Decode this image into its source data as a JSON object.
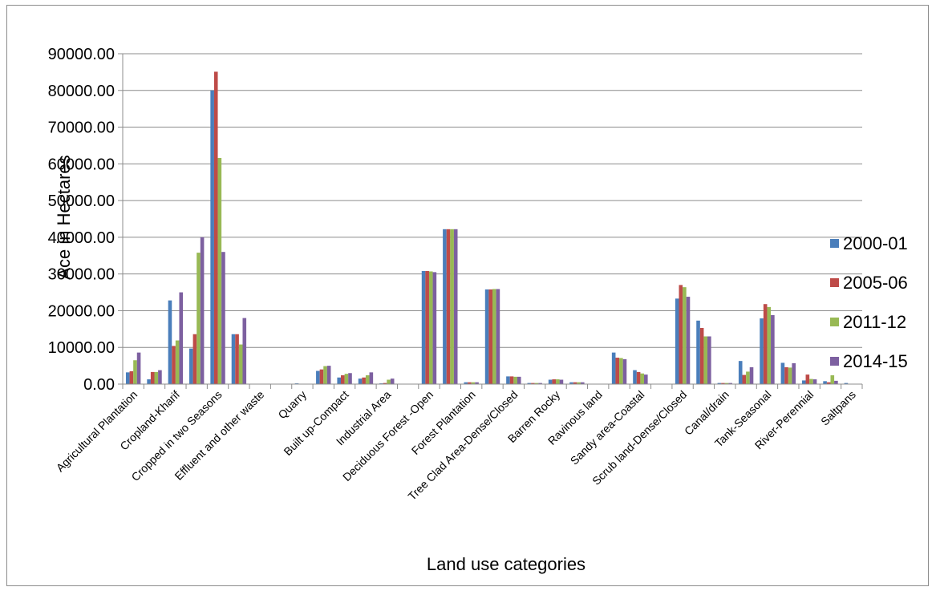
{
  "chart_data": {
    "type": "bar",
    "title": "",
    "xlabel": "Land use categories",
    "ylabel": "Ace in Hectares",
    "ylim": [
      0,
      90000
    ],
    "yticks": [
      "0.00",
      "10000.00",
      "20000.00",
      "30000.00",
      "40000.00",
      "50000.00",
      "60000.00",
      "70000.00",
      "80000.00",
      "90000.00"
    ],
    "grid": true,
    "legend_position": "right",
    "category_labels_shown": [
      "Agricultural Plantation",
      "Cropland-Kharif",
      "Cropped in two Seasons",
      "Effluent and other waste",
      "Quarry",
      "Built up-Compact",
      "Industrial Area",
      "Deciduous Forest -Open",
      "Forest Plantation",
      "Tree Clad Area-Dense/Closed",
      "Barren Rocky",
      "Ravinous land",
      "Sandy area-Coastal",
      "Scrub land-Dense/Closed",
      "Canal/drain",
      "Tank-Seasonal",
      "River-Perennial",
      "Saltpans"
    ],
    "label_every": 2,
    "categories": 35,
    "series": [
      {
        "name": "2000-01",
        "color": "#4a7ebb",
        "values": [
          3200,
          1300,
          22800,
          9700,
          80000,
          13600,
          0,
          0,
          200,
          3600,
          1800,
          1500,
          200,
          0,
          30800,
          42200,
          500,
          25800,
          2100,
          300,
          1200,
          500,
          0,
          8600,
          3800,
          0,
          23300,
          17300,
          300,
          6300,
          17900,
          5800,
          1000,
          800,
          300
        ]
      },
      {
        "name": "2005-06",
        "color": "#be4b48",
        "values": [
          3500,
          3300,
          10400,
          13600,
          85100,
          13600,
          0,
          0,
          0,
          4000,
          2400,
          1800,
          300,
          0,
          30800,
          42200,
          500,
          25800,
          2100,
          300,
          1300,
          500,
          0,
          7200,
          3300,
          0,
          27000,
          15300,
          300,
          2500,
          21800,
          4600,
          2600,
          500,
          0
        ]
      },
      {
        "name": "2011-12",
        "color": "#98b954",
        "values": [
          6500,
          3300,
          11900,
          35800,
          61600,
          10800,
          0,
          0,
          0,
          4900,
          2800,
          2400,
          1200,
          0,
          30700,
          42200,
          500,
          25900,
          2000,
          300,
          1300,
          500,
          0,
          7100,
          2900,
          0,
          26400,
          13000,
          300,
          3400,
          21000,
          4500,
          1400,
          2400,
          0
        ]
      },
      {
        "name": "2014-15",
        "color": "#7d60a0",
        "values": [
          8600,
          3800,
          25000,
          40000,
          36000,
          18000,
          0,
          0,
          0,
          5000,
          3000,
          3200,
          1500,
          0,
          30500,
          42200,
          500,
          25900,
          2000,
          300,
          1200,
          500,
          0,
          6800,
          2600,
          0,
          23800,
          13000,
          300,
          4600,
          18800,
          5700,
          1300,
          900,
          0
        ]
      }
    ]
  }
}
